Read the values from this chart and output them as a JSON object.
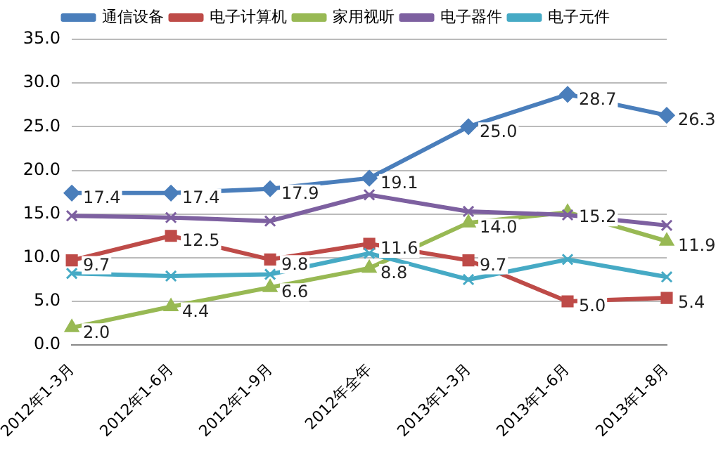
{
  "chart_data": {
    "type": "line",
    "categories": [
      "2012年1-3月",
      "2012年1-6月",
      "2012年1-9月",
      "2012年全年",
      "2013年1-3月",
      "2013年1-6月",
      "2013年1-8月"
    ],
    "ylim": [
      0,
      35
    ],
    "yticks": [
      {
        "value": 0,
        "label": "0.0"
      },
      {
        "value": 5,
        "label": "5.0"
      },
      {
        "value": 10,
        "label": "10.0"
      },
      {
        "value": 15,
        "label": "15.0"
      },
      {
        "value": 20,
        "label": "20.0"
      },
      {
        "value": 25,
        "label": "25.0"
      },
      {
        "value": 30,
        "label": "30.0"
      },
      {
        "value": 35,
        "label": "35.0"
      }
    ],
    "grid": "y",
    "legend": "top",
    "line_style": "solid",
    "series": [
      {
        "name": "通信设备",
        "color": "#4a7ebb",
        "marker": "diamond",
        "values": [
          17.4,
          17.4,
          17.9,
          19.1,
          25.0,
          28.7,
          26.3
        ],
        "value_labels": [
          "17.4",
          "17.4",
          "17.9",
          "19.1",
          "25.0",
          "28.7",
          "26.3"
        ]
      },
      {
        "name": "电子计算机",
        "color": "#be4b48",
        "marker": "square",
        "values": [
          9.7,
          12.5,
          9.8,
          11.6,
          9.7,
          5.0,
          5.4
        ],
        "value_labels": [
          "9.7",
          "12.5",
          "9.8",
          "11.6",
          "9.7",
          "5.0",
          "5.4"
        ]
      },
      {
        "name": "家用视听",
        "color": "#98b954",
        "marker": "triangle",
        "values": [
          2.0,
          4.4,
          6.6,
          8.8,
          14.0,
          15.2,
          11.9
        ],
        "value_labels": [
          "2.0",
          "4.4",
          "6.6",
          "8.8",
          "14.0",
          "15.2",
          "11.9"
        ]
      },
      {
        "name": "电子器件",
        "color": "#7d60a0",
        "marker": "cross",
        "values": [
          14.8,
          14.6,
          14.2,
          17.2,
          15.3,
          14.9,
          13.7
        ]
      },
      {
        "name": "电子元件",
        "color": "#46aac5",
        "marker": "cross",
        "values": [
          8.2,
          7.9,
          8.1,
          10.5,
          7.5,
          9.8,
          7.8
        ]
      }
    ]
  }
}
